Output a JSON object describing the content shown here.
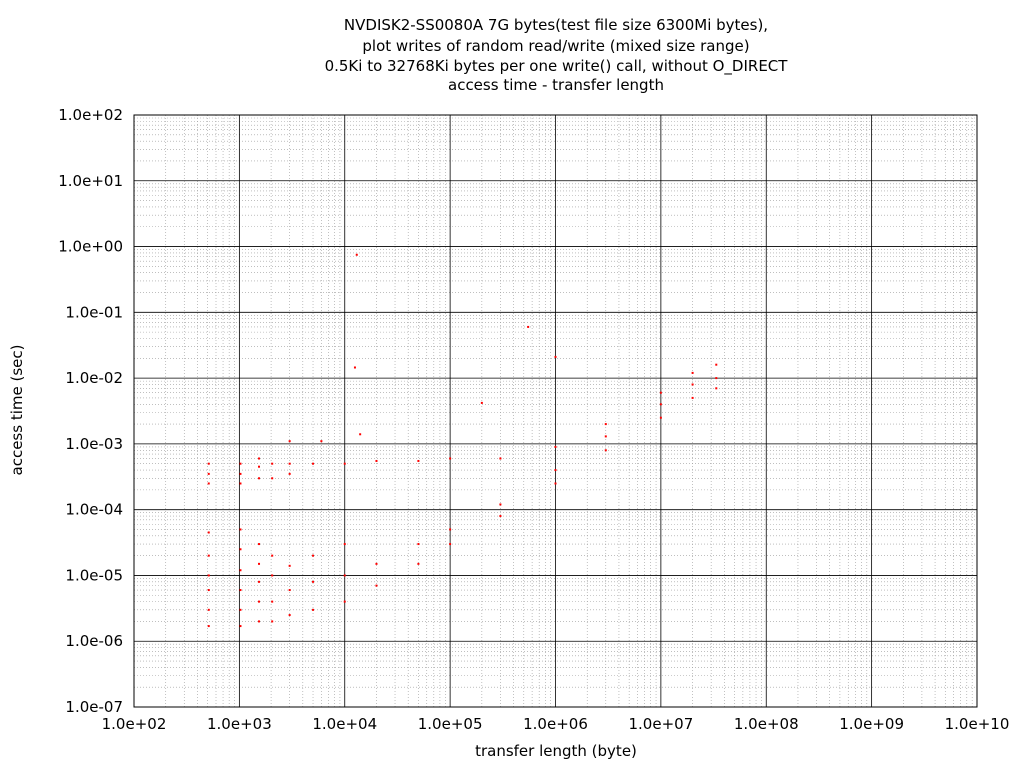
{
  "chart_data": {
    "type": "scatter",
    "title_lines": [
      "NVDISK2-SS0080A 7G bytes(test file size 6300Mi bytes),",
      "plot writes of random read/write (mixed size range)",
      "0.5Ki to 32768Ki bytes per one write() call, without O_DIRECT",
      "access time - transfer length"
    ],
    "xlabel": "transfer length (byte)",
    "ylabel": "access time (sec)",
    "x_scale": "log",
    "y_scale": "log",
    "xlim": [
      100,
      10000000000
    ],
    "ylim": [
      1e-07,
      100
    ],
    "x_tick_labels": [
      "1.0e+02",
      "1.0e+03",
      "1.0e+04",
      "1.0e+05",
      "1.0e+06",
      "1.0e+07",
      "1.0e+08",
      "1.0e+09",
      "1.0e+10"
    ],
    "y_tick_labels": [
      "1.0e+02",
      "1.0e+01",
      "1.0e+00",
      "1.0e-01",
      "1.0e-02",
      "1.0e-03",
      "1.0e-04",
      "1.0e-05",
      "1.0e-06",
      "1.0e-07"
    ],
    "grid": true,
    "marker_color": "#ff0000",
    "series": [
      {
        "points": [
          [
            512,
            1.7e-06
          ],
          [
            512,
            3e-06
          ],
          [
            512,
            6e-06
          ],
          [
            512,
            1e-05
          ],
          [
            512,
            2e-05
          ],
          [
            512,
            4.5e-05
          ],
          [
            512,
            0.00025
          ],
          [
            512,
            0.00035
          ],
          [
            512,
            0.0005
          ],
          [
            1024,
            1.7e-06
          ],
          [
            1024,
            3e-06
          ],
          [
            1024,
            6e-06
          ],
          [
            1024,
            1.2e-05
          ],
          [
            1024,
            2.5e-05
          ],
          [
            1024,
            5e-05
          ],
          [
            1024,
            0.00025
          ],
          [
            1024,
            0.00035
          ],
          [
            1024,
            0.0005
          ],
          [
            1536,
            2e-06
          ],
          [
            1536,
            4e-06
          ],
          [
            1536,
            8e-06
          ],
          [
            1536,
            1.5e-05
          ],
          [
            1536,
            3e-05
          ],
          [
            1536,
            0.0003
          ],
          [
            1536,
            0.00045
          ],
          [
            1536,
            0.0006
          ],
          [
            2048,
            2e-06
          ],
          [
            2048,
            4e-06
          ],
          [
            2048,
            1e-05
          ],
          [
            2048,
            2e-05
          ],
          [
            2048,
            0.0003
          ],
          [
            2048,
            0.0005
          ],
          [
            3000,
            2.5e-06
          ],
          [
            3000,
            6e-06
          ],
          [
            3000,
            1.4e-05
          ],
          [
            3000,
            0.00035
          ],
          [
            3000,
            0.0005
          ],
          [
            5000,
            3e-06
          ],
          [
            5000,
            8e-06
          ],
          [
            5000,
            2e-05
          ],
          [
            5000,
            0.0005
          ],
          [
            10000,
            4e-06
          ],
          [
            10000,
            1e-05
          ],
          [
            10000,
            3e-05
          ],
          [
            10000,
            0.0005
          ],
          [
            20000,
            7e-06
          ],
          [
            20000,
            1.5e-05
          ],
          [
            20000,
            0.00055
          ],
          [
            50000,
            1.5e-05
          ],
          [
            50000,
            3e-05
          ],
          [
            50000,
            0.00055
          ],
          [
            100000,
            3e-05
          ],
          [
            100000,
            5e-05
          ],
          [
            100000,
            0.0006
          ],
          [
            300000,
            8e-05
          ],
          [
            300000,
            0.00012
          ],
          [
            300000,
            0.0006
          ],
          [
            1000000,
            0.00025
          ],
          [
            1000000,
            0.0004
          ],
          [
            1000000,
            0.0009
          ],
          [
            3000000,
            0.0008
          ],
          [
            3000000,
            0.0013
          ],
          [
            3000000,
            0.002
          ],
          [
            10000000,
            0.0025
          ],
          [
            10000000,
            0.004
          ],
          [
            10000000,
            0.006
          ],
          [
            20000000,
            0.005
          ],
          [
            20000000,
            0.008
          ],
          [
            20000000,
            0.012
          ],
          [
            33554432,
            0.007
          ],
          [
            33554432,
            0.01
          ],
          [
            33554432,
            0.016
          ],
          [
            13000,
            0.75
          ],
          [
            550000,
            0.06
          ],
          [
            1000000,
            0.021
          ],
          [
            12500,
            0.0145
          ],
          [
            200000,
            0.0042
          ],
          [
            14000,
            0.0014
          ],
          [
            3000,
            0.0011
          ],
          [
            6000,
            0.0011
          ]
        ]
      }
    ]
  }
}
